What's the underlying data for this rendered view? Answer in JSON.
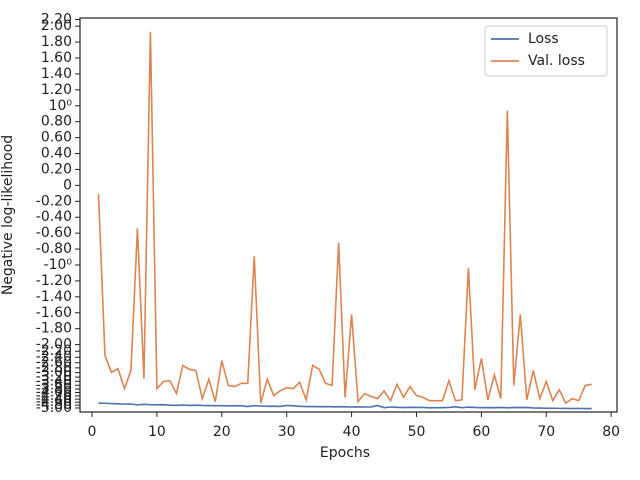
{
  "chart_data": {
    "type": "line",
    "xlabel": "Epochs",
    "ylabel": "Negative log-likelihood",
    "x": [
      1,
      2,
      3,
      4,
      5,
      6,
      7,
      8,
      9,
      10,
      11,
      12,
      13,
      14,
      15,
      16,
      17,
      18,
      19,
      20,
      21,
      22,
      23,
      24,
      25,
      26,
      27,
      28,
      29,
      30,
      31,
      32,
      33,
      34,
      35,
      36,
      37,
      38,
      39,
      40,
      41,
      42,
      43,
      44,
      45,
      46,
      47,
      48,
      49,
      50,
      51,
      52,
      53,
      54,
      55,
      56,
      57,
      58,
      59,
      60,
      61,
      62,
      63,
      64,
      65,
      66,
      67,
      68,
      69,
      70,
      71,
      72,
      73,
      74,
      75,
      76,
      77
    ],
    "series": [
      {
        "name": "Loss",
        "color": "#4c72b0",
        "values": [
          -4.66,
          -4.67,
          -4.69,
          -4.71,
          -4.73,
          -4.72,
          -4.78,
          -4.74,
          -4.77,
          -4.78,
          -4.77,
          -4.8,
          -4.81,
          -4.79,
          -4.82,
          -4.8,
          -4.82,
          -4.83,
          -4.84,
          -4.84,
          -4.85,
          -4.84,
          -4.85,
          -4.9,
          -4.84,
          -4.86,
          -4.88,
          -4.87,
          -4.89,
          -4.82,
          -4.85,
          -4.88,
          -4.9,
          -4.9,
          -4.91,
          -4.9,
          -4.92,
          -4.91,
          -4.92,
          -4.93,
          -4.92,
          -4.93,
          -4.93,
          -4.82,
          -4.98,
          -4.93,
          -4.95,
          -4.97,
          -4.95,
          -4.96,
          -4.96,
          -4.99,
          -4.98,
          -4.98,
          -4.96,
          -4.92,
          -4.98,
          -4.94,
          -4.96,
          -4.98,
          -4.97,
          -4.98,
          -4.96,
          -4.99,
          -4.96,
          -4.97,
          -4.96,
          -5.0,
          -5.01,
          -5.02,
          -5.02,
          -5.03,
          -5.03,
          -5.04,
          -5.03,
          -5.04,
          -5.04
        ]
      },
      {
        "name": "Val. loss",
        "color": "#dd8452",
        "values": [
          -0.11,
          -2.34,
          -2.99,
          -2.83,
          -3.78,
          -2.91,
          -0.54,
          -3.27,
          1.93,
          -3.78,
          -3.41,
          -3.37,
          -4.06,
          -2.7,
          -2.86,
          -2.91,
          -4.37,
          -3.3,
          -4.56,
          -2.52,
          -3.61,
          -3.67,
          -3.5,
          -3.5,
          -0.89,
          -4.66,
          -3.3,
          -4.18,
          -3.9,
          -3.73,
          -3.78,
          -3.45,
          -4.45,
          -2.7,
          -2.86,
          -3.5,
          -3.61,
          -0.72,
          -4.29,
          -1.62,
          -4.56,
          -4.06,
          -4.23,
          -4.37,
          -3.9,
          -4.5,
          -3.55,
          -4.29,
          -3.67,
          -4.18,
          -4.29,
          -4.5,
          -4.5,
          -4.5,
          -3.37,
          -4.5,
          -4.45,
          -1.04,
          -3.84,
          -2.44,
          -4.45,
          -3.1,
          -4.37,
          0.94,
          -3.61,
          -1.62,
          -4.45,
          -2.91,
          -4.37,
          -3.41,
          -4.5,
          -3.84,
          -4.66,
          -4.37,
          -4.5,
          -3.61,
          -3.55
        ]
      }
    ],
    "xlim": [
      -1.85,
      80.9
    ],
    "xticks": [
      0,
      10,
      20,
      30,
      40,
      50,
      60,
      70,
      80
    ],
    "yscale": "symlog",
    "linthresh": 2,
    "ylim": [
      -5.3,
      2.25
    ],
    "yticks": [
      {
        "value": 2.2,
        "label": "2.20"
      },
      {
        "value": 2.0,
        "label": "2.00"
      },
      {
        "value": 1.8,
        "label": "1.80"
      },
      {
        "value": 1.6,
        "label": "1.60"
      },
      {
        "value": 1.4,
        "label": "1.40"
      },
      {
        "value": 1.2,
        "label": "1.20"
      },
      {
        "value": 1,
        "label": "10⁰"
      },
      {
        "value": 0.8,
        "label": "0.80"
      },
      {
        "value": 0.6,
        "label": "0.60"
      },
      {
        "value": 0.4,
        "label": "0.40"
      },
      {
        "value": 0.2,
        "label": "0.20"
      },
      0,
      {
        "value": -0.2,
        "label": "-0.20"
      },
      {
        "value": -0.4,
        "label": "-0.40"
      },
      {
        "value": -0.6,
        "label": "-0.60"
      },
      {
        "value": -0.8,
        "label": "-0.80"
      },
      {
        "value": -1,
        "label": "-10⁰"
      },
      {
        "value": -1.2,
        "label": "-1.20"
      },
      {
        "value": -1.4,
        "label": "-1.40"
      },
      {
        "value": -1.6,
        "label": "-1.60"
      },
      {
        "value": -1.8,
        "label": "-1.80"
      },
      {
        "value": -2.0,
        "label": "-2.00"
      },
      {
        "value": -2.2,
        "label": "-2.20"
      },
      {
        "value": -2.4,
        "label": "-2.40"
      },
      {
        "value": -2.6,
        "label": "-2.60"
      },
      {
        "value": -2.8,
        "label": "-2.80"
      },
      {
        "value": -3.0,
        "label": "-3.00"
      },
      {
        "value": -3.2,
        "label": "-3.20"
      },
      {
        "value": -3.4,
        "label": "-3.40"
      },
      {
        "value": -3.6,
        "label": "-3.60"
      },
      {
        "value": -3.8,
        "label": "-3.80"
      },
      {
        "value": -4.0,
        "label": "-4.00"
      },
      {
        "value": -4.2,
        "label": "-4.20"
      },
      {
        "value": -4.4,
        "label": "-4.40"
      },
      {
        "value": -4.6,
        "label": "-4.60"
      },
      {
        "value": -4.8,
        "label": "-4.80"
      },
      {
        "value": -5.0,
        "label": "-5.00"
      }
    ],
    "legend": "upper right"
  }
}
